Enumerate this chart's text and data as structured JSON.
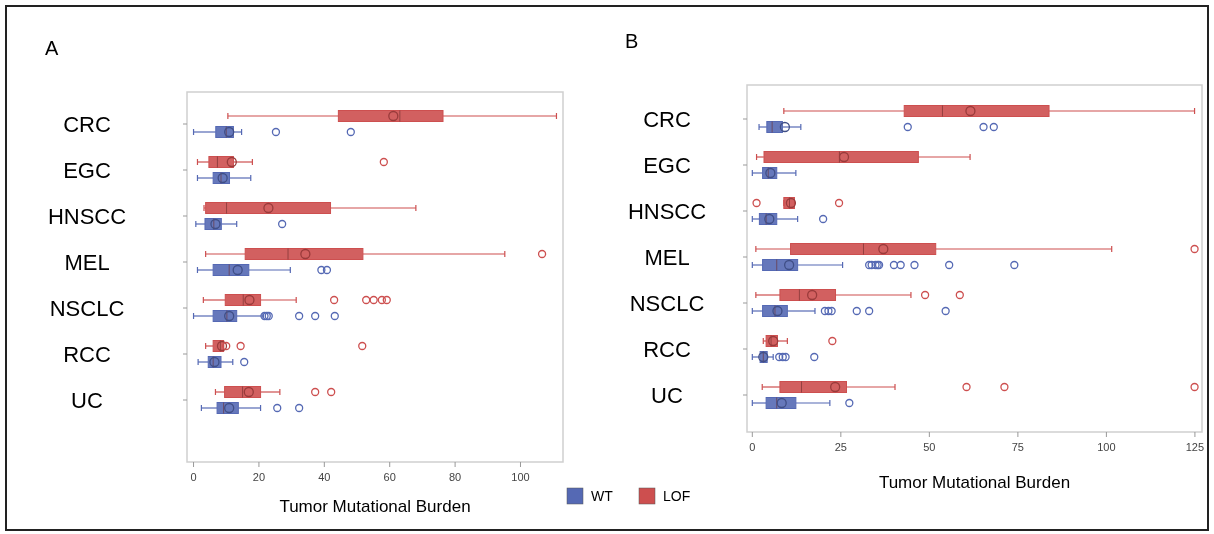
{
  "chart_data": [
    {
      "type": "box",
      "title": "A",
      "orientation": "horizontal",
      "xlabel": "Tumor Mutational Burden",
      "categories": [
        "CRC",
        "EGC",
        "HNSCC",
        "MEL",
        "NSCLC",
        "RCC",
        "UC"
      ],
      "xlim": [
        -2,
        113
      ],
      "xticks": [
        0,
        20,
        40,
        60,
        80,
        100
      ],
      "grid": false,
      "legend": "bottom",
      "marker": "circle",
      "series": [
        {
          "name": "LOF",
          "color": "#cd4f4f",
          "boxes": [
            {
              "low": 10.5,
              "q1": 44.3,
              "median": 63.1,
              "q3": 76.3,
              "high": 111,
              "mean": 61.1
            },
            {
              "low": 1.2,
              "q1": 4.7,
              "median": 7.3,
              "q3": 12.2,
              "high": 18,
              "mean": 11.7,
              "outliers": [
                58.2
              ]
            },
            {
              "low": 3.2,
              "q1": 3.7,
              "median": 10.1,
              "q3": 41.9,
              "high": 68,
              "mean": 22.9
            },
            {
              "low": 3.7,
              "q1": 15.8,
              "median": 28.9,
              "q3": 51.8,
              "high": 95.2,
              "mean": 34.2,
              "outliers": [
                106.6
              ]
            },
            {
              "low": 3,
              "q1": 9.7,
              "median": 15.2,
              "q3": 20.5,
              "high": 31.4,
              "mean": 17.1,
              "outliers": [
                43,
                52.8,
                55.1,
                57.6,
                59.1
              ]
            },
            {
              "low": 3.7,
              "q1": 6,
              "median": 8.2,
              "q3": 9.2,
              "high": 9.2,
              "mean": 8.7,
              "outliers": [
                10,
                14.4,
                51.6
              ]
            },
            {
              "low": 6.7,
              "q1": 9.5,
              "median": 15,
              "q3": 20.5,
              "high": 26.4,
              "mean": 16.9,
              "outliers": [
                37.2,
                42.1
              ]
            }
          ]
        },
        {
          "name": "WT",
          "color": "#5569b4",
          "boxes": [
            {
              "low": 0,
              "q1": 6.8,
              "median": 10,
              "q3": 12.2,
              "high": 14.7,
              "mean": 10.9,
              "outliers": [
                25.2,
                48.1
              ]
            },
            {
              "low": 1.2,
              "q1": 6,
              "median": 8.4,
              "q3": 11,
              "high": 17.5,
              "mean": 8.9
            },
            {
              "low": 0.7,
              "q1": 3.5,
              "median": 6.2,
              "q3": 8.5,
              "high": 13.2,
              "mean": 6.7,
              "outliers": [
                27.1
              ]
            },
            {
              "low": 1.2,
              "q1": 6,
              "median": 10.9,
              "q3": 16.9,
              "high": 29.6,
              "mean": 13.5,
              "outliers": [
                39.1,
                40.8
              ]
            },
            {
              "low": 0,
              "q1": 6,
              "median": 10.2,
              "q3": 13.2,
              "high": 21.2,
              "mean": 10.9,
              "outliers": [
                21.7,
                22.4,
                23,
                32.3,
                37.2,
                43.2
              ]
            },
            {
              "low": 1.4,
              "q1": 4.5,
              "median": 6,
              "q3": 8.4,
              "high": 12,
              "mean": 6.4,
              "outliers": [
                15.5
              ]
            },
            {
              "low": 2.4,
              "q1": 7.2,
              "median": 9.2,
              "q3": 13.7,
              "high": 20.5,
              "mean": 10.9,
              "outliers": [
                25.6,
                32.3
              ]
            }
          ]
        }
      ]
    },
    {
      "type": "box",
      "title": "B",
      "orientation": "horizontal",
      "xlabel": "Tumor Mutational Burden",
      "categories": [
        "CRC",
        "EGC",
        "HNSCC",
        "MEL",
        "NSCLC",
        "RCC",
        "UC"
      ],
      "xlim": [
        -1.5,
        127
      ],
      "xticks": [
        0,
        25,
        50,
        75,
        100,
        125
      ],
      "grid": false,
      "marker": "circle",
      "series": [
        {
          "color": "#cd4f4f",
          "boxes": [
            {
              "low": 8.9,
              "q1": 42.9,
              "median": 53.7,
              "q3": 83.8,
              "high": 124.9,
              "mean": 61.6
            },
            {
              "low": 1.2,
              "q1": 3.3,
              "median": 24.6,
              "q3": 46.9,
              "high": 61.5,
              "mean": 25.9
            },
            {
              "low": 8.9,
              "q1": 8.9,
              "median": 10.5,
              "q3": 11.9,
              "high": 11.9,
              "mean": 10.9,
              "outliers": [
                1.2,
                24.5
              ]
            },
            {
              "low": 1,
              "q1": 10.8,
              "median": 31.4,
              "q3": 51.8,
              "high": 101.5,
              "mean": 37,
              "outliers": [
                124.9
              ]
            },
            {
              "low": 1,
              "q1": 7.8,
              "median": 13.3,
              "q3": 23.5,
              "high": 44.8,
              "mean": 16.9,
              "outliers": [
                48.8,
                58.6
              ]
            },
            {
              "low": 3.1,
              "q1": 3.9,
              "median": 5.3,
              "q3": 7.1,
              "high": 9.9,
              "mean": 5.9,
              "outliers": [
                22.6
              ]
            },
            {
              "low": 2.8,
              "q1": 7.8,
              "median": 13.9,
              "q3": 26.6,
              "high": 40.3,
              "mean": 23.4,
              "outliers": [
                60.5,
                71.2,
                124.9
              ]
            }
          ]
        },
        {
          "color": "#5569b4",
          "boxes": [
            {
              "low": 1.9,
              "q1": 4.1,
              "median": 5.6,
              "q3": 8.5,
              "high": 13.7,
              "mean": 9.2,
              "outliers": [
                43.9,
                65.3,
                68.2
              ]
            },
            {
              "low": 0,
              "q1": 2.9,
              "median": 4.5,
              "q3": 6.9,
              "high": 12.3,
              "mean": 5.1
            },
            {
              "low": 0,
              "q1": 2,
              "median": 3.9,
              "q3": 6.9,
              "high": 12.8,
              "mean": 4.8,
              "outliers": [
                20
              ]
            },
            {
              "low": 0,
              "q1": 2.9,
              "median": 6.9,
              "q3": 12.8,
              "high": 25.5,
              "mean": 10.4,
              "outliers": [
                33,
                33.7,
                34.8,
                35.4,
                35.8,
                40,
                41.9,
                45.8,
                55.6,
                74
              ]
            },
            {
              "low": 0,
              "q1": 2.9,
              "median": 6.4,
              "q3": 9.9,
              "high": 17.7,
              "mean": 7.1,
              "outliers": [
                20.5,
                21.5,
                22.4,
                29.5,
                33,
                54.6
              ]
            },
            {
              "low": 0,
              "q1": 2.2,
              "median": 3.1,
              "q3": 4.2,
              "high": 5.9,
              "mean": 3.1,
              "outliers": [
                7.6,
                8.6,
                9.4,
                17.5
              ]
            },
            {
              "low": 0,
              "q1": 3.9,
              "median": 6.9,
              "q3": 12.3,
              "high": 21.9,
              "mean": 8.3,
              "outliers": [
                27.4
              ]
            }
          ]
        }
      ]
    }
  ]
}
